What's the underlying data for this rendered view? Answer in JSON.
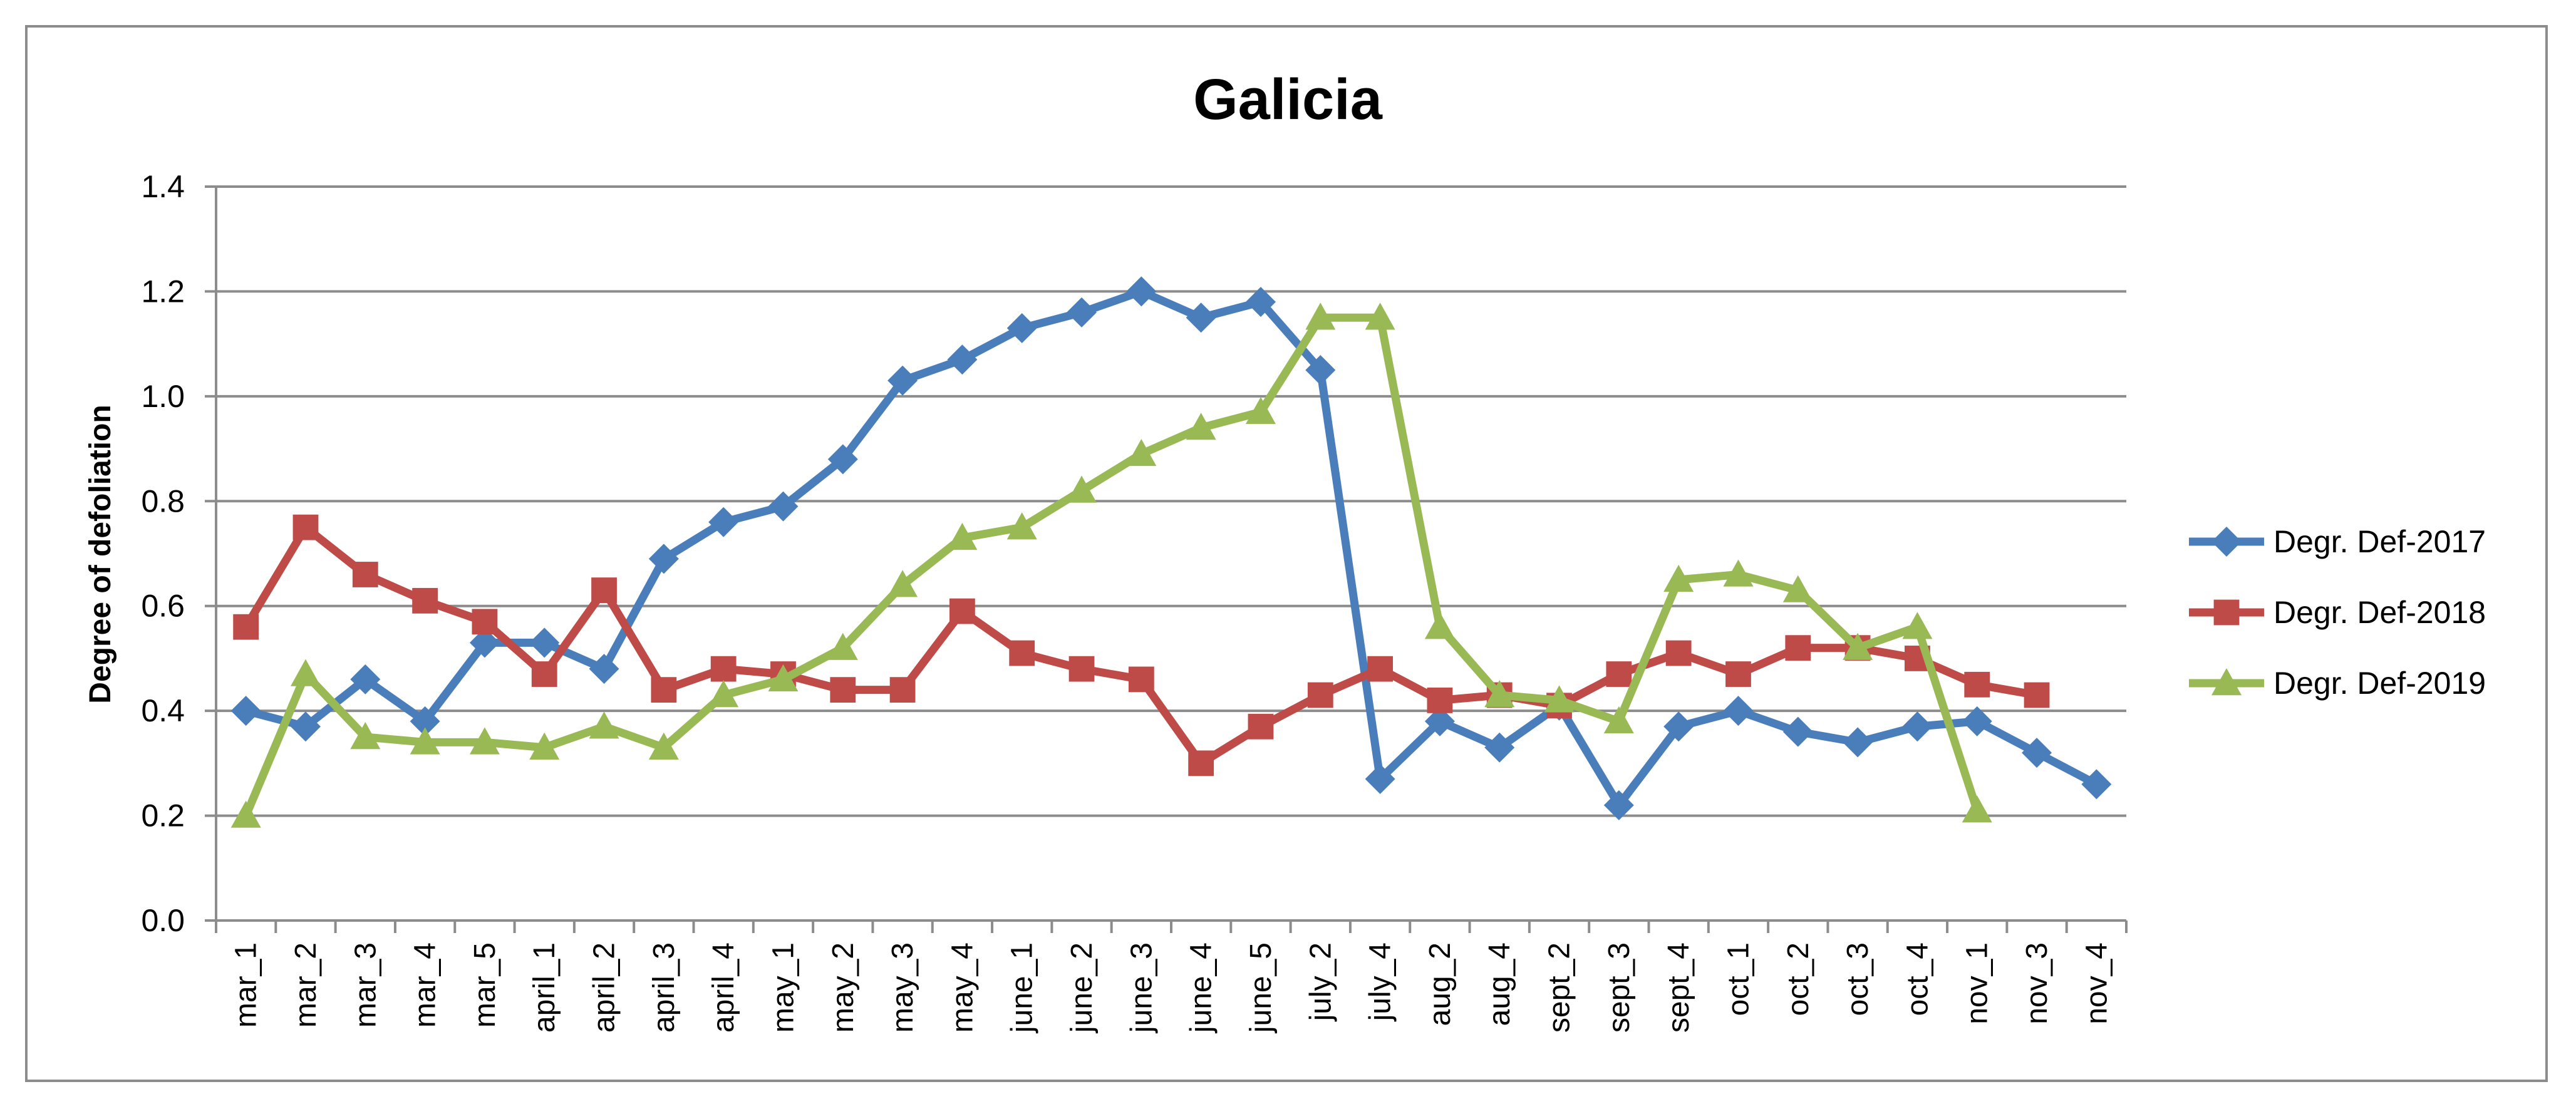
{
  "chart_data": {
    "type": "line",
    "title": "Galicia",
    "ylabel": "Degree of defoliation",
    "xlabel": "",
    "ylim": [
      0,
      1.4
    ],
    "yticks": [
      "0.0",
      "0.2",
      "0.4",
      "0.6",
      "0.8",
      "1.0",
      "1.2",
      "1.4"
    ],
    "grid": "horizontal",
    "legend_position": "right",
    "categories": [
      "mar_1",
      "mar_2",
      "mar_3",
      "mar_4",
      "mar_5",
      "april_1",
      "april_2",
      "april_3",
      "april_4",
      "may_1",
      "may_2",
      "may_3",
      "may_4",
      "june_1",
      "june_2",
      "june_3",
      "june_4",
      "june_5",
      "july_2",
      "july_4",
      "aug_2",
      "aug_4",
      "sept_2",
      "sept_3",
      "sept_4",
      "oct_1",
      "oct_2",
      "oct_3",
      "oct_4",
      "nov_1",
      "nov_3",
      "nov_4"
    ],
    "series": [
      {
        "name": "Degr. Def-2017",
        "color": "#4a7ebb",
        "marker": "diamond",
        "values": [
          0.4,
          0.37,
          0.46,
          0.38,
          0.53,
          0.53,
          0.48,
          0.69,
          0.76,
          0.79,
          0.88,
          1.03,
          1.07,
          1.13,
          1.16,
          1.2,
          1.15,
          1.18,
          1.05,
          0.27,
          0.38,
          0.33,
          0.41,
          0.22,
          0.37,
          0.4,
          0.36,
          0.34,
          0.37,
          0.38,
          0.32,
          0.26
        ]
      },
      {
        "name": "Degr. Def-2018",
        "color": "#be4b48",
        "marker": "square",
        "values": [
          0.56,
          0.75,
          0.66,
          0.61,
          0.57,
          0.47,
          0.63,
          0.44,
          0.48,
          0.47,
          0.44,
          0.44,
          0.59,
          0.51,
          0.48,
          0.46,
          0.3,
          0.37,
          0.43,
          0.48,
          0.42,
          0.43,
          0.41,
          0.47,
          0.51,
          0.47,
          0.52,
          0.52,
          0.5,
          0.45,
          0.43,
          null
        ]
      },
      {
        "name": "Degr. Def-2019",
        "color": "#98b954",
        "marker": "triangle",
        "values": [
          0.2,
          0.47,
          0.35,
          0.34,
          0.34,
          0.33,
          0.37,
          0.33,
          0.43,
          0.46,
          0.52,
          0.64,
          0.73,
          0.75,
          0.82,
          0.89,
          0.94,
          0.97,
          1.15,
          1.15,
          0.56,
          0.43,
          0.42,
          0.38,
          0.65,
          0.66,
          0.63,
          0.52,
          0.56,
          0.21,
          null,
          null
        ]
      }
    ]
  }
}
